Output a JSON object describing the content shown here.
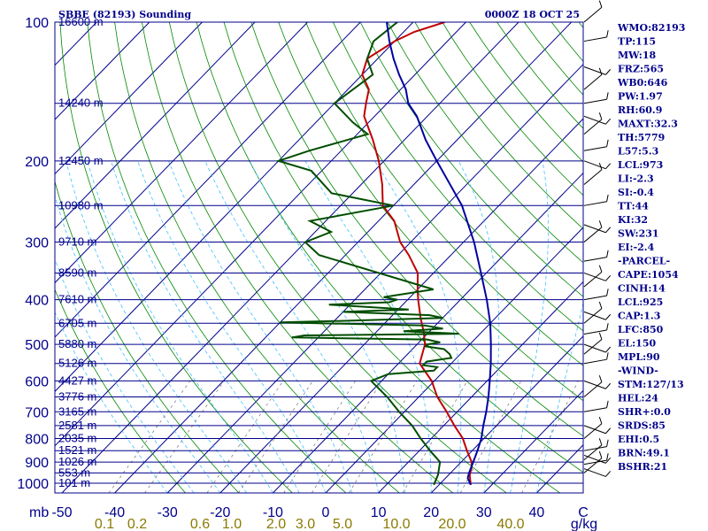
{
  "chart_data": {
    "type": "line",
    "title": "SBBE (82193) Sounding",
    "valid_time": "0000Z 18 OCT 25",
    "pressure_unit_label": "mb",
    "mixing_ratio_unit_label": "g/kg",
    "temperature_ticks": [
      "-50",
      "-40",
      "-30",
      "-20",
      "-10",
      "0",
      "10",
      "20",
      "30",
      "40",
      "C"
    ],
    "mixing_ratio_ticks": [
      "0.1",
      "0.2",
      "0.6",
      "1.0",
      "2.0",
      "3.0",
      "5.0",
      "10.0",
      "20.0",
      "40.0"
    ],
    "pressure_ticks": [
      {
        "p": 100,
        "label": "100"
      },
      {
        "p": 200,
        "label": "200"
      },
      {
        "p": 300,
        "label": "300"
      },
      {
        "p": 400,
        "label": "400"
      },
      {
        "p": 500,
        "label": "500"
      },
      {
        "p": 600,
        "label": "600"
      },
      {
        "p": 700,
        "label": "700"
      },
      {
        "p": 800,
        "label": "800"
      },
      {
        "p": 900,
        "label": "900"
      },
      {
        "p": 1000,
        "label": "1000"
      }
    ],
    "height_labels": [
      {
        "p": 100,
        "label": "16600 m"
      },
      {
        "p": 150,
        "label": "14240 m"
      },
      {
        "p": 200,
        "label": "12450 m"
      },
      {
        "p": 250,
        "label": "10980 m"
      },
      {
        "p": 300,
        "label": "9710 m"
      },
      {
        "p": 350,
        "label": "8590 m"
      },
      {
        "p": 400,
        "label": "7610 m"
      },
      {
        "p": 450,
        "label": "6705 m"
      },
      {
        "p": 500,
        "label": "5880 m"
      },
      {
        "p": 550,
        "label": "5126 m"
      },
      {
        "p": 600,
        "label": "4427 m"
      },
      {
        "p": 650,
        "label": "3776 m"
      },
      {
        "p": 700,
        "label": "3165 m"
      },
      {
        "p": 750,
        "label": "2581 m"
      },
      {
        "p": 800,
        "label": "2035 m"
      },
      {
        "p": 850,
        "label": "1521 m"
      },
      {
        "p": 900,
        "label": "1026 m"
      },
      {
        "p": 950,
        "label": "553 m"
      },
      {
        "p": 1000,
        "label": "101 m"
      }
    ],
    "series": [
      {
        "name": "Temperature",
        "color": "#c00000",
        "points": [
          [
            1008,
            26
          ],
          [
            960,
            24
          ],
          [
            925,
            23
          ],
          [
            900,
            22
          ],
          [
            850,
            19
          ],
          [
            800,
            16
          ],
          [
            750,
            12
          ],
          [
            700,
            8
          ],
          [
            650,
            3.5
          ],
          [
            600,
            -0.5
          ],
          [
            550,
            -6
          ],
          [
            500,
            -8.5
          ],
          [
            470,
            -11
          ],
          [
            440,
            -14
          ],
          [
            400,
            -18
          ],
          [
            380,
            -20
          ],
          [
            350,
            -23
          ],
          [
            320,
            -28
          ],
          [
            300,
            -32
          ],
          [
            270,
            -37
          ],
          [
            250,
            -42
          ],
          [
            225,
            -46
          ],
          [
            200,
            -51
          ],
          [
            180,
            -56
          ],
          [
            160,
            -62
          ],
          [
            150,
            -64
          ],
          [
            140,
            -66
          ],
          [
            130,
            -70
          ],
          [
            120,
            -72
          ],
          [
            110,
            -70
          ],
          [
            105,
            -68
          ],
          [
            100,
            -64
          ]
        ]
      },
      {
        "name": "Dewpoint",
        "color": "#004d00",
        "points": [
          [
            1008,
            19
          ],
          [
            960,
            18
          ],
          [
            900,
            16
          ],
          [
            850,
            12
          ],
          [
            800,
            8
          ],
          [
            750,
            4
          ],
          [
            700,
            -1
          ],
          [
            650,
            -6
          ],
          [
            600,
            -12
          ],
          [
            580,
            -10
          ],
          [
            570,
            -2
          ],
          [
            560,
            -2
          ],
          [
            555,
            -5
          ],
          [
            545,
            -5
          ],
          [
            535,
            -1
          ],
          [
            525,
            -2
          ],
          [
            512,
            -4
          ],
          [
            505,
            -8
          ],
          [
            500,
            -8
          ],
          [
            495,
            -6
          ],
          [
            488,
            -9
          ],
          [
            483,
            -35
          ],
          [
            478,
            -33
          ],
          [
            474,
            -4
          ],
          [
            468,
            -15
          ],
          [
            462,
            -8
          ],
          [
            455,
            -12
          ],
          [
            448,
            -40
          ],
          [
            445,
            -30
          ],
          [
            438,
            -10
          ],
          [
            432,
            -13
          ],
          [
            425,
            -30
          ],
          [
            420,
            -18
          ],
          [
            410,
            -34
          ],
          [
            405,
            -23
          ],
          [
            400,
            -22
          ],
          [
            395,
            -25
          ],
          [
            380,
            -17
          ],
          [
            320,
            -45
          ],
          [
            300,
            -50
          ],
          [
            285,
            -47
          ],
          [
            270,
            -53
          ],
          [
            250,
            -40
          ],
          [
            235,
            -54
          ],
          [
            210,
            -62
          ],
          [
            200,
            -70
          ],
          [
            190,
            -66
          ],
          [
            175,
            -58
          ],
          [
            165,
            -63
          ],
          [
            150,
            -70
          ],
          [
            130,
            -68
          ],
          [
            120,
            -72
          ],
          [
            110,
            -74
          ],
          [
            100,
            -73
          ]
        ]
      },
      {
        "name": "Parcel",
        "color": "#0000a0",
        "points": [
          [
            1008,
            26
          ],
          [
            975,
            24.2
          ],
          [
            950,
            23.5
          ],
          [
            900,
            22.3
          ],
          [
            850,
            21
          ],
          [
            800,
            19.5
          ],
          [
            750,
            17.5
          ],
          [
            700,
            15.5
          ],
          [
            650,
            13.2
          ],
          [
            600,
            10.5
          ],
          [
            550,
            7.5
          ],
          [
            500,
            4
          ],
          [
            450,
            0
          ],
          [
            400,
            -5
          ],
          [
            350,
            -11
          ],
          [
            300,
            -18
          ],
          [
            250,
            -27
          ],
          [
            200,
            -40
          ],
          [
            180,
            -46
          ],
          [
            160,
            -52
          ],
          [
            150,
            -56
          ],
          [
            140,
            -59
          ],
          [
            130,
            -63
          ],
          [
            120,
            -67
          ],
          [
            110,
            -71
          ],
          [
            100,
            -75
          ]
        ]
      }
    ],
    "wind_barbs_present": true,
    "grid": true
  },
  "indices": [
    "WMO:82193",
    "TP:115",
    "MW:18",
    "FRZ:565",
    "WB0:646",
    "PW:1.97",
    "RH:60.9",
    "MAXT:32.3",
    "TH:5779",
    "L57:5.3",
    "LCL:973",
    "LI:-2.3",
    "SI:-0.4",
    "TT:44",
    "KI:32",
    "SW:231",
    "EI:-2.4",
    "-PARCEL-",
    "CAPE:1054",
    "CINH:14",
    "LCL:925",
    "CAP:1.3",
    "LFC:850",
    "EL:150",
    "MPL:90",
    "-WIND-",
    "STM:127/13",
    "HEL:24",
    "SHR+:0.0",
    "SRDS:85",
    "EHI:0.5",
    "BRN:49.1",
    "BSHR:21"
  ],
  "colors": {
    "frame": "#00008b",
    "isotherm": "#00008b",
    "dry_adiabat": "#008800",
    "moist_adiabat": "#40c0ff",
    "mixing_ratio": "#808080"
  }
}
